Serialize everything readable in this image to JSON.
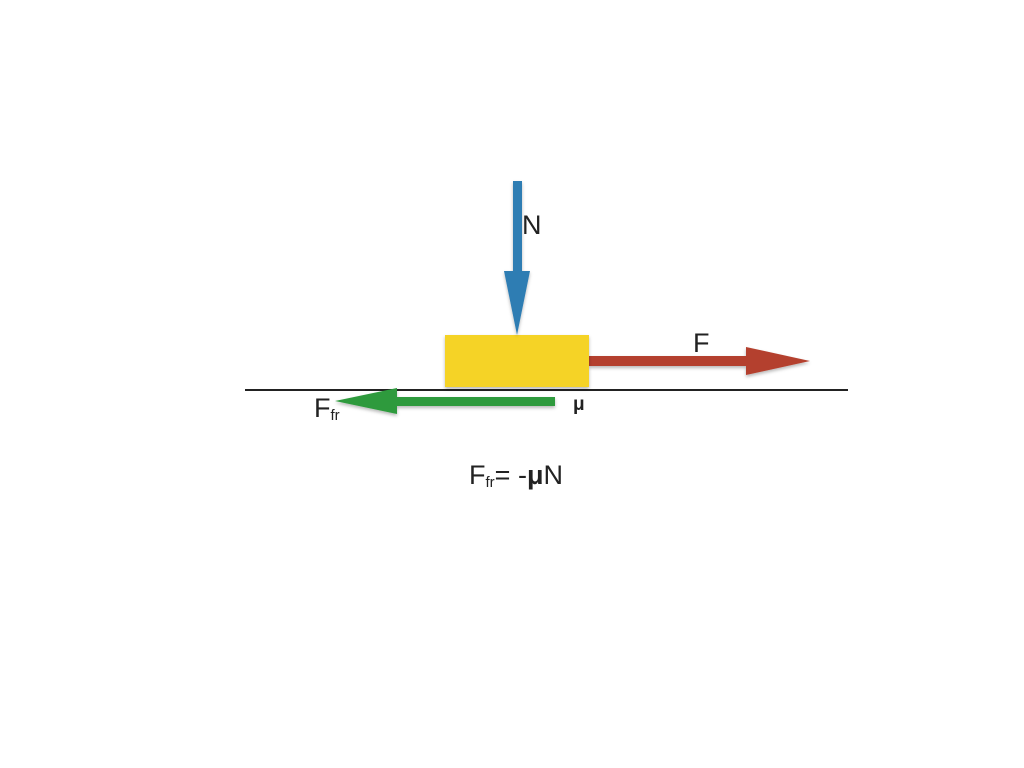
{
  "labels": {
    "normal_force": "N",
    "applied_force": "F",
    "friction_force_main": "F",
    "friction_force_sub": "fr",
    "friction_coefficient": "μ"
  },
  "formula": {
    "lhs_main": "F",
    "lhs_sub": "fr",
    "equals": "= -",
    "mu": "μ",
    "rhs": "N"
  },
  "colors": {
    "block": "#f5d327",
    "normal_arrow": "#2f7db3",
    "applied_arrow": "#b4412f",
    "friction_arrow": "#2e9a3d",
    "surface": "#222222"
  }
}
